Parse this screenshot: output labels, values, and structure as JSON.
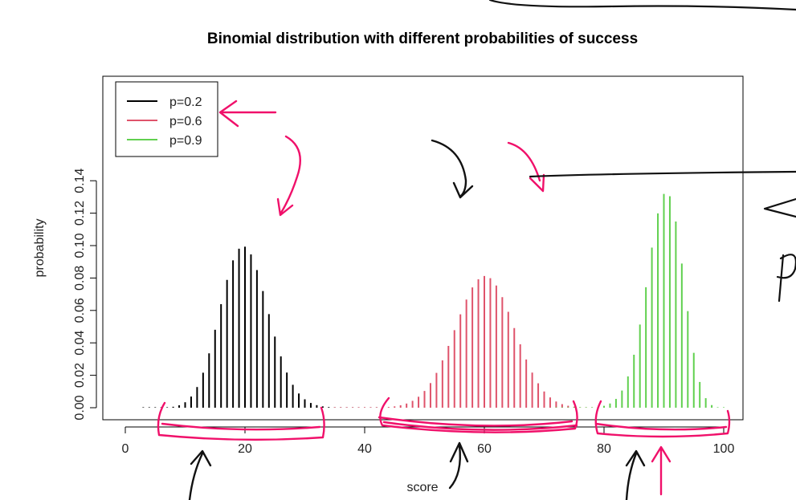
{
  "chart_data": {
    "type": "bar",
    "title": "Binomial distribution with different probabilities of success",
    "xlabel": "score",
    "ylabel": "probability",
    "xlim": [
      0,
      100
    ],
    "ylim": [
      0,
      0.14
    ],
    "x_ticks": [
      0,
      20,
      40,
      60,
      80,
      100
    ],
    "y_ticks": [
      "0.00",
      "0.02",
      "0.04",
      "0.06",
      "0.08",
      "0.10",
      "0.12",
      "0.14"
    ],
    "n": 100,
    "legend_position": "top-left",
    "series": [
      {
        "name": "p=0.2",
        "p": 0.2,
        "color": "#000000"
      },
      {
        "name": "p=0.6",
        "p": 0.6,
        "color": "#DF536B"
      },
      {
        "name": "p=0.9",
        "p": 0.9,
        "color": "#61D04F"
      }
    ]
  },
  "annotations": {
    "ink_black": "#111111",
    "ink_pink": "#F0106A"
  }
}
